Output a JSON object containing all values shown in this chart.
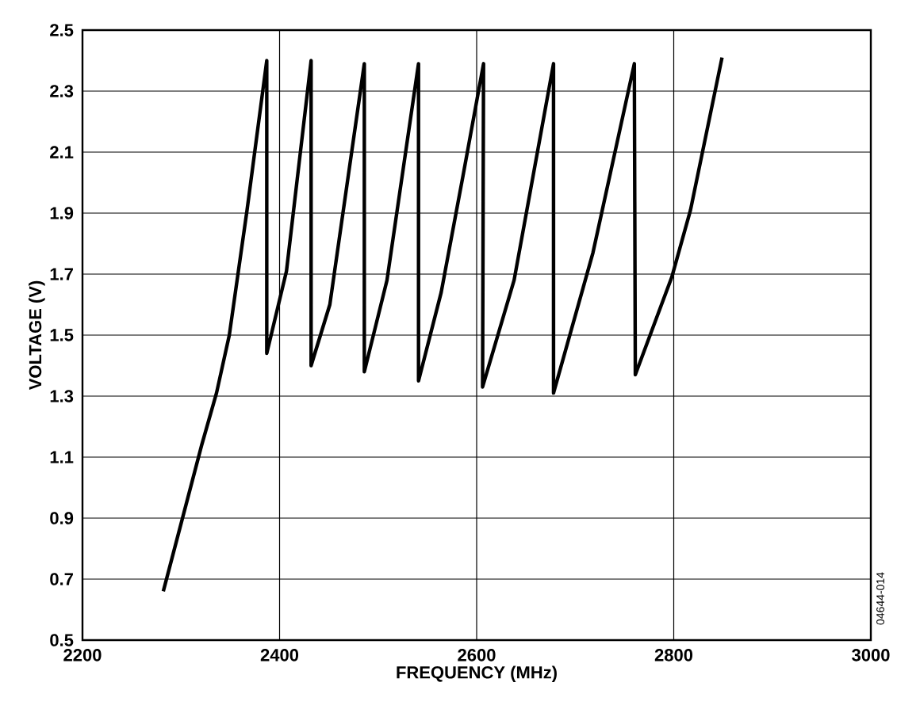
{
  "chart_data": {
    "type": "line",
    "xlabel": "FREQUENCY (MHz)",
    "ylabel": "VOLTAGE (V)",
    "x": [
      2282,
      2321,
      2336,
      2349,
      2367,
      2387,
      2387,
      2407,
      2432,
      2432,
      2451,
      2486,
      2486,
      2509,
      2541,
      2541,
      2564,
      2586,
      2607,
      2606,
      2638,
      2678,
      2678,
      2718,
      2760,
      2761,
      2798,
      2817,
      2849
    ],
    "series": [
      {
        "color": "#000000",
        "values": [
          0.66,
          1.14,
          1.31,
          1.5,
          1.91,
          2.4,
          1.44,
          1.71,
          2.4,
          1.4,
          1.6,
          2.39,
          1.38,
          1.68,
          2.39,
          1.35,
          1.64,
          2.02,
          2.39,
          1.33,
          1.68,
          2.39,
          1.31,
          1.77,
          2.39,
          1.37,
          1.69,
          1.91,
          2.41
        ]
      }
    ],
    "xlim": [
      2200,
      3000
    ],
    "ylim": [
      0.5,
      2.5
    ],
    "xticks": [
      2200,
      2400,
      2600,
      2800,
      3000
    ],
    "yticks": [
      0.5,
      0.7,
      0.9,
      1.1,
      1.3,
      1.5,
      1.7,
      1.9,
      2.1,
      2.3,
      2.5
    ],
    "grid": true,
    "marker": "none",
    "line_style": "solid",
    "annotations": [
      "04644-014"
    ]
  }
}
